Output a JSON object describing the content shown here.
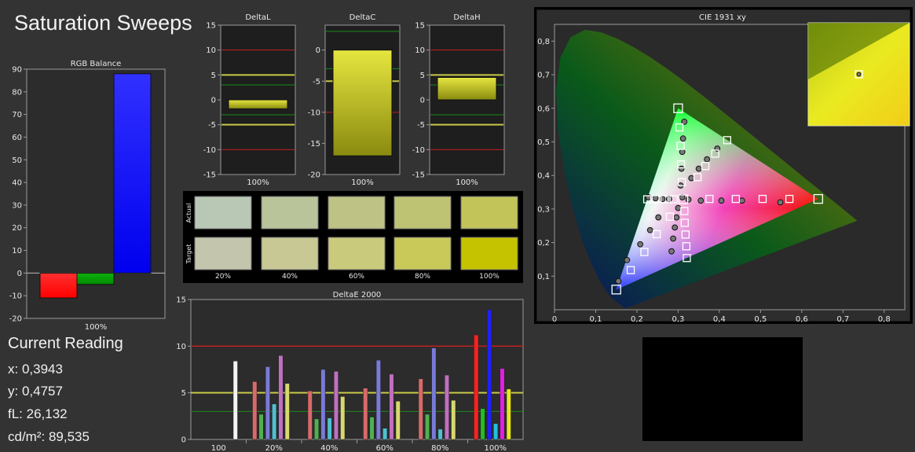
{
  "page": {
    "title": "Saturation Sweeps",
    "current_reading": {
      "heading": "Current Reading",
      "x": "x: 0,3943",
      "y": "y: 0,4757",
      "fl": "fL: 26,132",
      "cdm2": "cd/m²: 89,535"
    }
  },
  "colors": {
    "red": "#ff0000",
    "green": "#008800",
    "blue": "#0000ff",
    "yellow": "#d8d820"
  },
  "chart_data": [
    {
      "type": "bar",
      "title": "RGB Balance",
      "categories": [
        "100%"
      ],
      "series": [
        {
          "values": [
            -11
          ]
        },
        {
          "values": [
            -5
          ]
        },
        {
          "values": [
            88
          ]
        }
      ],
      "ylim": [
        -20,
        90
      ],
      "yticks": [
        -20,
        -10,
        0,
        10,
        20,
        30,
        40,
        50,
        60,
        70,
        80,
        90
      ],
      "ytick_labels": [
        "-20",
        "-10",
        "0",
        "10",
        "20",
        "30",
        "40",
        "50",
        "60",
        "70",
        "80",
        "90"
      ]
    },
    {
      "type": "bar",
      "title": "DeltaL",
      "categories": [
        "100%"
      ],
      "values": [
        -1.8
      ],
      "ylim": [
        -15,
        15
      ],
      "yticks": [
        -15,
        -10,
        -5,
        0,
        5,
        10,
        15
      ],
      "ytick_labels": [
        "-15",
        "-10",
        "-5",
        "0",
        "5",
        "10",
        "15"
      ]
    },
    {
      "type": "bar",
      "title": "DeltaC",
      "categories": [
        "100%"
      ],
      "values": [
        -17
      ],
      "ylim": [
        -20,
        4
      ],
      "yticks": [
        -20,
        -15,
        -10,
        -5,
        0
      ],
      "ytick_labels": [
        "-20",
        "-15",
        "-10",
        "-5",
        "0"
      ]
    },
    {
      "type": "bar",
      "title": "DeltaH",
      "categories": [
        "100%"
      ],
      "values": [
        4.5
      ],
      "ylim": [
        -15,
        15
      ],
      "yticks": [
        -15,
        -10,
        -5,
        0,
        5,
        10,
        15
      ],
      "ytick_labels": [
        "-15",
        "-10",
        "-5",
        "0",
        "5",
        "10",
        "15"
      ]
    },
    {
      "type": "table",
      "row_labels": [
        "Actual",
        "Target"
      ],
      "columns": [
        "20%",
        "40%",
        "60%",
        "80%",
        "100%"
      ],
      "actual_colors": [
        "#b9c8b4",
        "#bac49a",
        "#bec285",
        "#bec373",
        "#c2c459"
      ],
      "target_colors": [
        "#c3c5ad",
        "#c7c894",
        "#c9ca7c",
        "#c9c95a",
        "#c5c300"
      ]
    },
    {
      "type": "bar",
      "title": "DeltaE 2000",
      "categories": [
        "100",
        "20%",
        "40%",
        "60%",
        "80%",
        "100%"
      ],
      "series": [
        {
          "name": "White",
          "values": [
            8.4,
            null,
            null,
            null,
            null,
            null
          ]
        },
        {
          "name": "Red",
          "values": [
            null,
            6.2,
            5.2,
            5.5,
            6.5,
            11.2
          ]
        },
        {
          "name": "Green",
          "values": [
            null,
            2.7,
            2.2,
            2.4,
            2.7,
            3.3
          ]
        },
        {
          "name": "Blue",
          "values": [
            null,
            7.8,
            7.5,
            8.5,
            9.8,
            13.9
          ]
        },
        {
          "name": "Cyan",
          "values": [
            null,
            3.8,
            2.3,
            1.2,
            1.1,
            1.7
          ]
        },
        {
          "name": "Magenta",
          "values": [
            null,
            9.0,
            7.3,
            7.0,
            6.9,
            7.6
          ]
        },
        {
          "name": "Yellow",
          "values": [
            null,
            6.0,
            4.6,
            4.1,
            4.2,
            5.4
          ]
        }
      ],
      "ylim": [
        0,
        15
      ],
      "yticks": [
        0,
        5,
        10,
        15
      ],
      "ytick_labels": [
        "0",
        "5",
        "10",
        "15"
      ]
    },
    {
      "type": "scatter",
      "title": "CIE 1931 xy",
      "xlim": [
        0,
        0.85
      ],
      "ylim": [
        0,
        0.85
      ],
      "xticks": [
        0,
        0.1,
        0.2,
        0.3,
        0.4,
        0.5,
        0.6,
        0.7,
        0.8
      ],
      "xtick_labels": [
        "0",
        "0,1",
        "0,2",
        "0,3",
        "0,4",
        "0,5",
        "0,6",
        "0,7",
        "0,8"
      ],
      "yticks": [
        0.1,
        0.2,
        0.3,
        0.4,
        0.5,
        0.6,
        0.7,
        0.8
      ],
      "ytick_labels": [
        "0,1",
        "0,2",
        "0,3",
        "0,4",
        "0,5",
        "0,6",
        "0,7",
        "0,8"
      ],
      "gamut": [
        [
          0.64,
          0.33
        ],
        [
          0.3,
          0.6
        ],
        [
          0.15,
          0.06
        ]
      ],
      "white_point": [
        0.3127,
        0.329
      ],
      "targets": [
        [
          0.3127,
          0.329
        ],
        [
          0.64,
          0.33
        ],
        [
          0.57,
          0.33
        ],
        [
          0.505,
          0.33
        ],
        [
          0.44,
          0.33
        ],
        [
          0.376,
          0.33
        ],
        [
          0.3,
          0.6
        ],
        [
          0.303,
          0.543
        ],
        [
          0.306,
          0.488
        ],
        [
          0.307,
          0.433
        ],
        [
          0.309,
          0.38
        ],
        [
          0.15,
          0.06
        ],
        [
          0.185,
          0.118
        ],
        [
          0.218,
          0.172
        ],
        [
          0.248,
          0.225
        ],
        [
          0.28,
          0.277
        ],
        [
          0.225,
          0.329
        ],
        [
          0.246,
          0.329
        ],
        [
          0.267,
          0.329
        ],
        [
          0.289,
          0.329
        ],
        [
          0.321,
          0.154
        ],
        [
          0.32,
          0.189
        ],
        [
          0.318,
          0.224
        ],
        [
          0.316,
          0.259
        ],
        [
          0.315,
          0.294
        ],
        [
          0.419,
          0.505
        ],
        [
          0.39,
          0.465
        ],
        [
          0.366,
          0.428
        ],
        [
          0.347,
          0.395
        ]
      ],
      "measurements": [
        [
          0.31,
          0.335
        ],
        [
          0.548,
          0.32
        ],
        [
          0.455,
          0.325
        ],
        [
          0.405,
          0.325
        ],
        [
          0.355,
          0.325
        ],
        [
          0.325,
          0.328
        ],
        [
          0.315,
          0.56
        ],
        [
          0.312,
          0.51
        ],
        [
          0.31,
          0.47
        ],
        [
          0.308,
          0.42
        ],
        [
          0.306,
          0.37
        ],
        [
          0.155,
          0.085
        ],
        [
          0.176,
          0.148
        ],
        [
          0.208,
          0.195
        ],
        [
          0.232,
          0.237
        ],
        [
          0.252,
          0.275
        ],
        [
          0.228,
          0.335
        ],
        [
          0.245,
          0.332
        ],
        [
          0.262,
          0.33
        ],
        [
          0.278,
          0.33
        ],
        [
          0.284,
          0.174
        ],
        [
          0.288,
          0.212
        ],
        [
          0.292,
          0.245
        ],
        [
          0.296,
          0.275
        ],
        [
          0.3,
          0.303
        ],
        [
          0.395,
          0.48
        ],
        [
          0.37,
          0.448
        ],
        [
          0.35,
          0.42
        ],
        [
          0.332,
          0.392
        ]
      ]
    }
  ]
}
